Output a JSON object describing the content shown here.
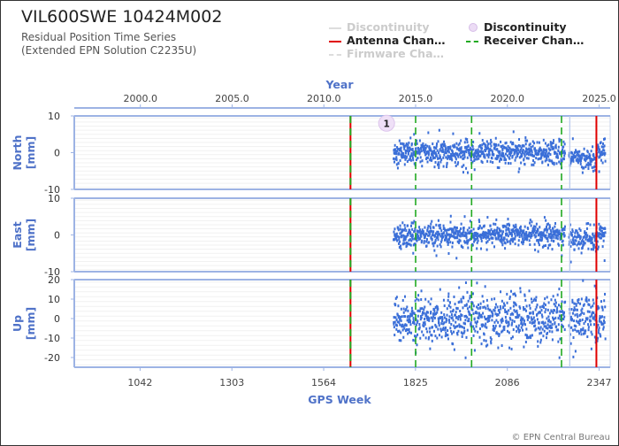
{
  "header": {
    "title": "VIL600SWE 10424M002",
    "subtitle_line1": "Residual Position Time Series",
    "subtitle_line2": "(Extended EPN Solution C2235U)"
  },
  "legend": [
    {
      "label": "Discontinuity",
      "kind": "line",
      "color": "#cccccc",
      "faded": true
    },
    {
      "label": "Discontinuity",
      "kind": "marker",
      "color": "#e0c8ee",
      "faded": false
    },
    {
      "label": "Antenna Chan…",
      "kind": "line",
      "color": "#e00000",
      "faded": false
    },
    {
      "label": "Receiver Chan…",
      "kind": "dash",
      "color": "#22aa22",
      "faded": false
    },
    {
      "label": "Firmware Cha…",
      "kind": "dash",
      "color": "#cccccc",
      "faded": true
    }
  ],
  "footer": {
    "copyright": "© EPN Central Bureau"
  },
  "chart_data": {
    "type": "scatter",
    "x_top": {
      "label": "Year",
      "ticks": [
        "2000.0",
        "2005.0",
        "2010.0",
        "2015.0",
        "2020.0",
        "2025.0"
      ],
      "tick_values": [
        2000,
        2005,
        2010,
        2015,
        2020,
        2025
      ]
    },
    "x_bottom": {
      "label": "GPS Week",
      "ticks": [
        "1042",
        "1303",
        "1564",
        "1825",
        "2086",
        "2347"
      ],
      "tick_values": [
        1042,
        1303,
        1564,
        1825,
        2086,
        2347
      ]
    },
    "x_range_years": [
      1996.4,
      2025.6
    ],
    "panels": [
      {
        "name": "North",
        "ylabel": "North\n[mm]",
        "ylim": [
          -10,
          10
        ],
        "ticks": [
          "10",
          "0",
          "-10"
        ],
        "tick_values": [
          10,
          0,
          -10
        ],
        "data_start": 2013.8,
        "data_end": 2025.35,
        "spread": 1.6,
        "color": "#3b6fd8"
      },
      {
        "name": "East",
        "ylabel": "East\n[mm]",
        "ylim": [
          -10,
          10
        ],
        "ticks": [
          "10",
          "0",
          "-10"
        ],
        "tick_values": [
          10,
          0,
          -10
        ],
        "data_start": 2013.8,
        "data_end": 2025.35,
        "spread": 1.5,
        "color": "#3b6fd8"
      },
      {
        "name": "Up",
        "ylabel": "Up\n[mm]",
        "ylim": [
          -25,
          20
        ],
        "ticks": [
          "20",
          "10",
          "0",
          "-10",
          "-20"
        ],
        "tick_values": [
          20,
          10,
          0,
          -10,
          -20
        ],
        "data_start": 2013.8,
        "data_end": 2025.35,
        "spread": 6.5,
        "color": "#3b6fd8"
      }
    ],
    "events": [
      {
        "type": "antenna_change",
        "year": 2011.45,
        "color": "#e00000",
        "with_receiver": true
      },
      {
        "type": "receiver_change",
        "year": 2015.0,
        "color": "#22aa22"
      },
      {
        "type": "receiver_change",
        "year": 2018.05,
        "color": "#22aa22"
      },
      {
        "type": "receiver_change",
        "year": 2022.95,
        "color": "#22aa22"
      },
      {
        "type": "firmware_change",
        "year": 2023.4,
        "color": "#b8c8ee"
      },
      {
        "type": "antenna_change",
        "year": 2024.85,
        "color": "#e00000",
        "with_receiver": false
      }
    ],
    "discontinuity_marker": {
      "label": "1",
      "year": 2013.9,
      "panel": "North",
      "value": 8
    }
  }
}
